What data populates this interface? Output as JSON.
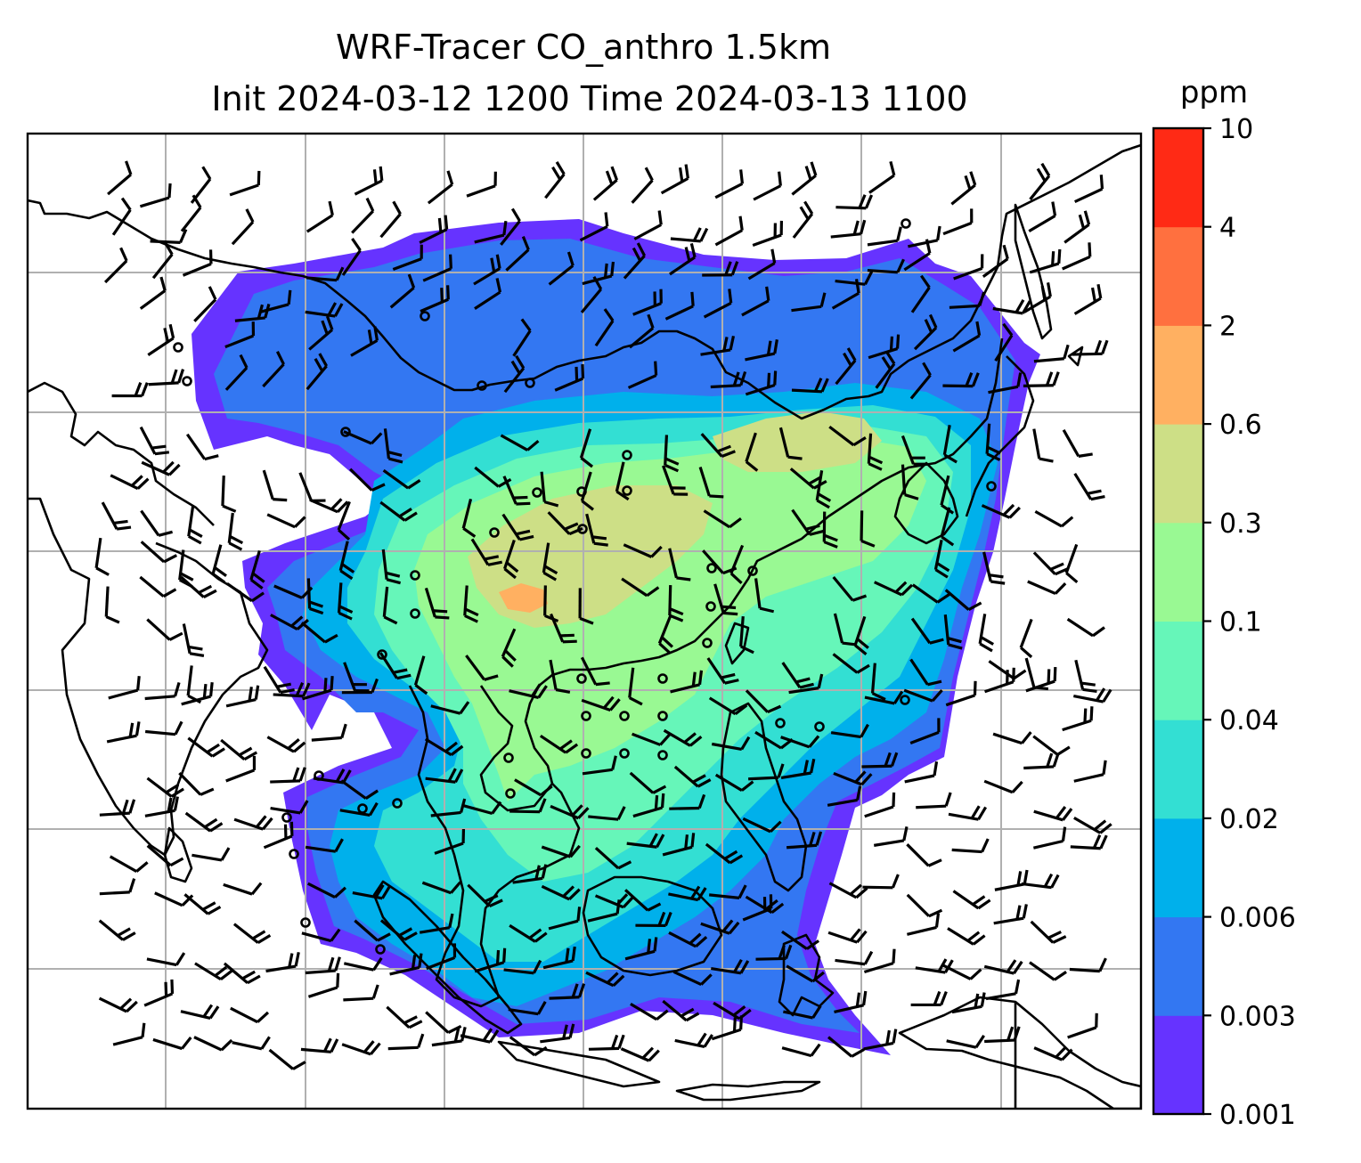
{
  "title_line1": "WRF-Tracer CO_anthro 1.5km",
  "title_line2": "Init 2024-03-12 1200 Time 2024-03-13 1100",
  "colorbar": {
    "unit": "ppm",
    "levels": [
      "0.001",
      "0.003",
      "0.006",
      "0.02",
      "0.04",
      "0.1",
      "0.3",
      "0.6",
      "2",
      "4",
      "10"
    ],
    "colors": [
      "#6633ff",
      "#3377f2",
      "#00b0eb",
      "#33dfd3",
      "#66f6b9",
      "#99f993",
      "#cddf86",
      "#ffb061",
      "#ff703f",
      "#ff2a15"
    ]
  },
  "map": {
    "background": "#ffffff",
    "coastline_color": "#000000",
    "gridline_color": "#b0b0b0",
    "overlays": [
      "CO_anthro concentration (filled)",
      "wind barbs",
      "coastlines",
      "lat/lon gridlines"
    ]
  }
}
